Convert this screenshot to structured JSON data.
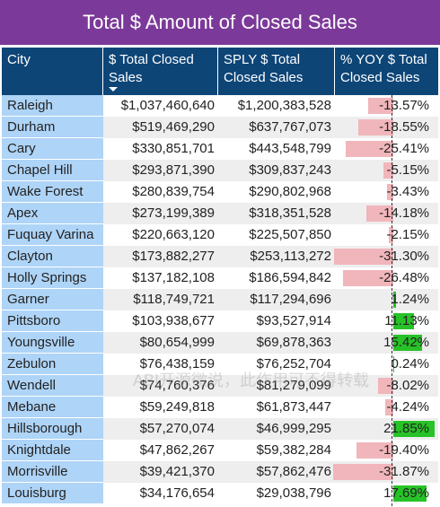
{
  "title": "Total $ Amount of Closed Sales",
  "headers": [
    "City",
    "$ Total Closed Sales",
    "SPLY $ Total Closed Sales",
    "% YOY $ Total Closed Sales"
  ],
  "watermark": "ABI开源微说，此作用可不得转载",
  "colors": {
    "title_bg": "#7b3a99",
    "header_bg": "#0d4577",
    "city_bg": "#aed4f7",
    "neg_bar": "#f0b6bb",
    "pos_bar": "#27c227"
  },
  "rows": [
    {
      "city": "Raleigh",
      "total": "$1,037,460,640",
      "sply": "$1,200,383,528",
      "yoy": "-13.57%",
      "yoy_value": -13.57
    },
    {
      "city": "Durham",
      "total": "$519,469,290",
      "sply": "$637,767,073",
      "yoy": "-18.55%",
      "yoy_value": -18.55
    },
    {
      "city": "Cary",
      "total": "$330,851,701",
      "sply": "$443,548,799",
      "yoy": "-25.41%",
      "yoy_value": -25.41
    },
    {
      "city": "Chapel Hill",
      "total": "$293,871,390",
      "sply": "$309,837,243",
      "yoy": "-5.15%",
      "yoy_value": -5.15
    },
    {
      "city": "Wake Forest",
      "total": "$280,839,754",
      "sply": "$290,802,968",
      "yoy": "-3.43%",
      "yoy_value": -3.43
    },
    {
      "city": "Apex",
      "total": "$273,199,389",
      "sply": "$318,351,528",
      "yoy": "-14.18%",
      "yoy_value": -14.18
    },
    {
      "city": "Fuquay Varina",
      "total": "$220,663,120",
      "sply": "$225,507,850",
      "yoy": "-2.15%",
      "yoy_value": -2.15
    },
    {
      "city": "Clayton",
      "total": "$173,882,277",
      "sply": "$253,113,272",
      "yoy": "-31.30%",
      "yoy_value": -31.3
    },
    {
      "city": "Holly Springs",
      "total": "$137,182,108",
      "sply": "$186,594,842",
      "yoy": "-26.48%",
      "yoy_value": -26.48
    },
    {
      "city": "Garner",
      "total": "$118,749,721",
      "sply": "$117,294,696",
      "yoy": "1.24%",
      "yoy_value": 1.24
    },
    {
      "city": "Pittsboro",
      "total": "$103,938,677",
      "sply": "$93,527,914",
      "yoy": "11.13%",
      "yoy_value": 11.13
    },
    {
      "city": "Youngsville",
      "total": "$80,654,999",
      "sply": "$69,878,363",
      "yoy": "15.42%",
      "yoy_value": 15.42
    },
    {
      "city": "Zebulon",
      "total": "$76,438,159",
      "sply": "$76,252,704",
      "yoy": "0.24%",
      "yoy_value": 0.24
    },
    {
      "city": "Wendell",
      "total": "$74,760,376",
      "sply": "$81,279,099",
      "yoy": "-8.02%",
      "yoy_value": -8.02
    },
    {
      "city": "Mebane",
      "total": "$59,249,818",
      "sply": "$61,873,447",
      "yoy": "-4.24%",
      "yoy_value": -4.24
    },
    {
      "city": "Hillsborough",
      "total": "$57,270,074",
      "sply": "$46,999,295",
      "yoy": "21.85%",
      "yoy_value": 21.85
    },
    {
      "city": "Knightdale",
      "total": "$47,862,267",
      "sply": "$59,382,284",
      "yoy": "-19.40%",
      "yoy_value": -19.4
    },
    {
      "city": "Morrisville",
      "total": "$39,421,370",
      "sply": "$57,862,476",
      "yoy": "-31.87%",
      "yoy_value": -31.87
    },
    {
      "city": "Louisburg",
      "total": "$34,176,654",
      "sply": "$29,038,796",
      "yoy": "17.69%",
      "yoy_value": 17.69
    }
  ]
}
